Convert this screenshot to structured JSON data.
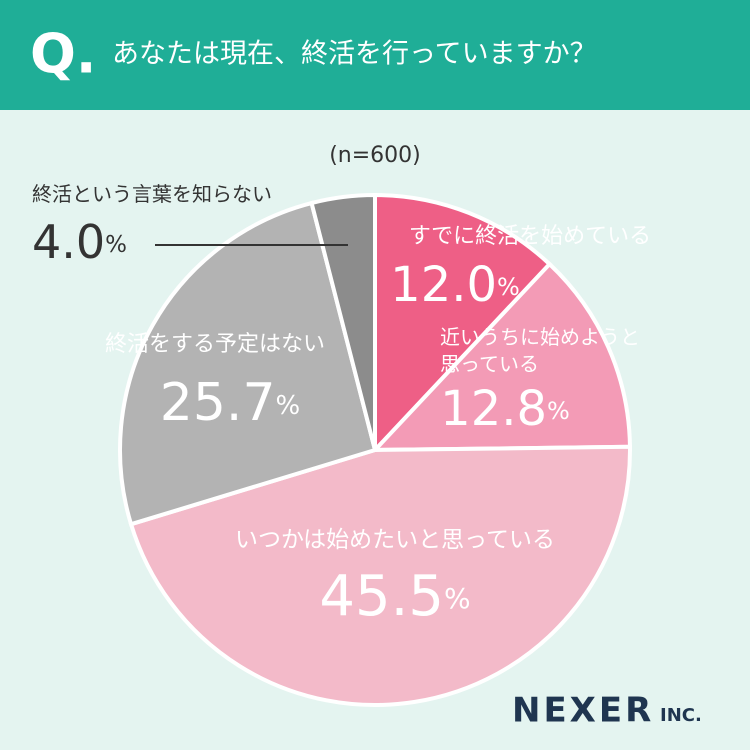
{
  "header": {
    "badge": "Q."
  },
  "chart_data": {
    "type": "pie",
    "title": "あなたは現在、終活を行っていますか？",
    "subtitle": "(n=600)",
    "categories": [
      "すでに終活を始めている",
      "近いうちに始めようと\n思っている",
      "いつかは始めたいと思っている",
      "終活をする予定はない",
      "終活という言葉を知らない"
    ],
    "values": [
      12.0,
      12.8,
      45.5,
      25.7,
      4.0
    ],
    "value_labels": [
      "12.0%",
      "12.8%",
      "45.5%",
      "25.7%",
      "4.0%"
    ],
    "colors": [
      "#ee5f86",
      "#f39bb6",
      "#f3bac9",
      "#b3b3b3",
      "#8c8c8c"
    ]
  },
  "footer": {
    "logo": "NEXER",
    "logo_suffix": "INC."
  }
}
